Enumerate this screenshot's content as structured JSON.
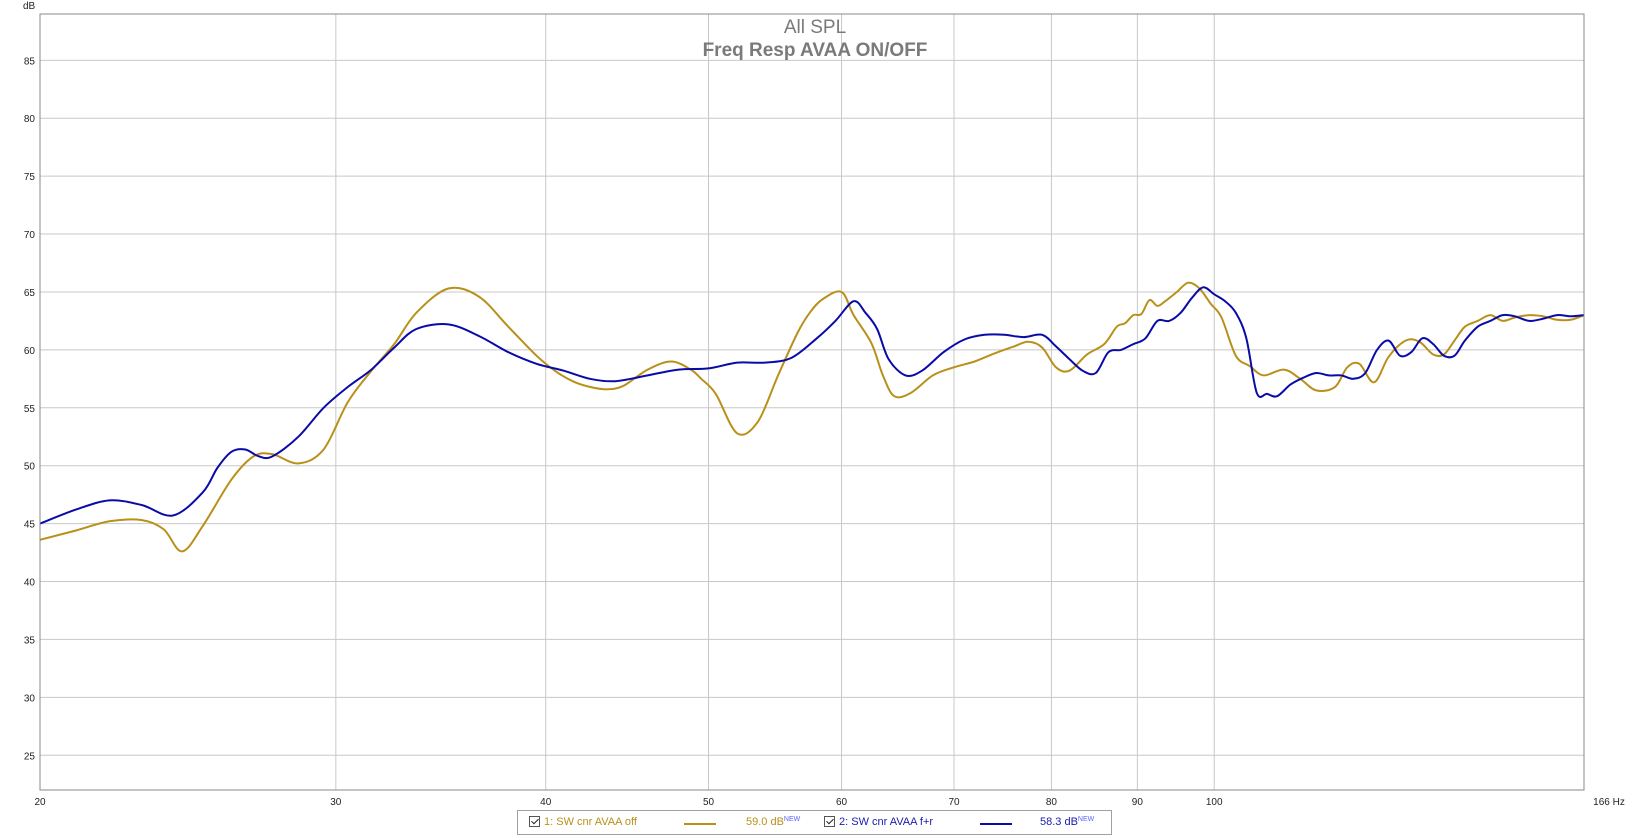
{
  "chart_data": {
    "type": "line",
    "title": "All SPL",
    "subtitle": "Freq Resp AVAA ON/OFF",
    "ylabel": "dB",
    "xunit": "Hz",
    "xscale": "log",
    "xlim": [
      20,
      166
    ],
    "ylim": [
      22,
      89
    ],
    "x_ticks": [
      20,
      30,
      40,
      50,
      60,
      70,
      80,
      90,
      100
    ],
    "x_tick_labels": [
      "20",
      "30",
      "40",
      "50",
      "60",
      "70",
      "80",
      "90",
      "100"
    ],
    "x_end_label": "166 Hz",
    "y_ticks": [
      25,
      30,
      35,
      40,
      45,
      50,
      55,
      60,
      65,
      70,
      75,
      80,
      85
    ],
    "grid": true,
    "series": [
      {
        "name": "1: SW cnr AVAA off",
        "color": "#b8901a",
        "x": [
          20,
          21,
          22,
          23,
          23.7,
          24.3,
          25,
          26,
          26.8,
          27.5,
          28.5,
          29.5,
          30.5,
          31.5,
          32.5,
          33.5,
          35,
          36.5,
          38,
          39.5,
          40.5,
          41.5,
          42.5,
          43.5,
          44.5,
          46,
          47.5,
          48.8,
          49.5,
          50.5,
          52,
          53.5,
          55,
          56.5,
          57.5,
          58.5,
          60,
          61,
          62.5,
          63.5,
          64.5,
          66,
          68,
          70,
          72,
          74,
          76,
          77.5,
          79,
          80.5,
          82,
          84,
          86,
          87.5,
          88.5,
          89.5,
          90.5,
          91.5,
          92.5,
          93.5,
          95,
          96.5,
          98,
          99.5,
          101,
          103,
          105,
          107,
          110,
          112.5,
          115,
          118,
          120,
          122,
          124.5,
          127,
          130,
          132.5,
          135,
          137,
          139,
          141,
          143.5,
          146,
          148.5,
          151,
          154,
          157,
          160,
          163,
          166
        ],
        "values": [
          43.6,
          44.4,
          45.2,
          45.3,
          44.5,
          42.6,
          44.8,
          48.8,
          50.8,
          51.0,
          50.2,
          51.4,
          55.5,
          58.2,
          60.5,
          63.2,
          65.3,
          64.6,
          62.0,
          59.5,
          58.2,
          57.3,
          56.8,
          56.6,
          56.9,
          58.3,
          59.0,
          58.3,
          57.5,
          56.2,
          52.8,
          53.8,
          57.8,
          61.5,
          63.3,
          64.4,
          65.0,
          63.0,
          60.6,
          57.8,
          56.0,
          56.3,
          57.8,
          58.5,
          59.0,
          59.7,
          60.3,
          60.7,
          60.2,
          58.5,
          58.2,
          59.6,
          60.5,
          62.0,
          62.3,
          63.0,
          63.1,
          64.3,
          63.8,
          64.2,
          65.0,
          65.8,
          65.3,
          64.0,
          62.8,
          59.5,
          58.6,
          57.8,
          58.3,
          57.5,
          56.5,
          56.8,
          58.5,
          58.8,
          57.2,
          59.4,
          60.8,
          60.7,
          59.6,
          59.6,
          60.8,
          62.0,
          62.5,
          63.0,
          62.5,
          62.8,
          63.0,
          62.9,
          62.6,
          62.6,
          63.0
        ]
      },
      {
        "name": "2: SW cnr AVAA f+r",
        "color": "#0a0aa8",
        "x": [
          20,
          21,
          22,
          23,
          24,
          25,
          25.5,
          26,
          26.5,
          27,
          27.5,
          28.5,
          29.5,
          30.5,
          31.5,
          32.5,
          33.5,
          35,
          36.5,
          38,
          39.5,
          41,
          42.5,
          44,
          46,
          48,
          50,
          52,
          54,
          56,
          58,
          59.5,
          61,
          62,
          63,
          64,
          65.5,
          67,
          69,
          71,
          73,
          75,
          77,
          79,
          80.5,
          82,
          83.5,
          85,
          86.5,
          88,
          89.5,
          91,
          92.5,
          94,
          95.5,
          97,
          98.5,
          100,
          101.5,
          103,
          104.5,
          106,
          107.5,
          109,
          111,
          113,
          115,
          117,
          119,
          121,
          123,
          125,
          127,
          129,
          131,
          133,
          135,
          137,
          139,
          141,
          143.5,
          146,
          148.5,
          151,
          154,
          157,
          160,
          163,
          166
        ],
        "values": [
          45.0,
          46.2,
          47.0,
          46.6,
          45.7,
          47.7,
          49.8,
          51.2,
          51.4,
          50.8,
          50.8,
          52.5,
          55.0,
          56.8,
          58.3,
          60.2,
          61.8,
          62.2,
          61.2,
          59.8,
          58.8,
          58.2,
          57.5,
          57.3,
          57.8,
          58.3,
          58.4,
          58.9,
          58.9,
          59.3,
          61.0,
          62.5,
          64.2,
          63.2,
          61.8,
          59.2,
          57.8,
          58.2,
          59.8,
          60.9,
          61.3,
          61.3,
          61.1,
          61.3,
          60.3,
          59.2,
          58.2,
          58.0,
          59.8,
          60.0,
          60.5,
          61.0,
          62.5,
          62.5,
          63.2,
          64.5,
          65.4,
          64.8,
          64.2,
          63.2,
          61.0,
          56.3,
          56.2,
          56.0,
          57.0,
          57.6,
          58.0,
          57.8,
          57.8,
          57.5,
          58.0,
          60.0,
          60.8,
          59.5,
          59.8,
          61.0,
          60.5,
          59.5,
          59.5,
          60.8,
          62.0,
          62.5,
          63.0,
          62.9,
          62.5,
          62.7,
          63.0,
          62.9,
          63.0
        ]
      }
    ]
  },
  "legend": {
    "items": [
      {
        "label": "1: SW cnr AVAA off",
        "value": "59.0 dB",
        "tag": "NEW",
        "color": "#b8901a"
      },
      {
        "label": "2: SW cnr AVAA f+r",
        "value": "58.3 dB",
        "tag": "NEW",
        "color": "#1a1ab0"
      }
    ]
  }
}
